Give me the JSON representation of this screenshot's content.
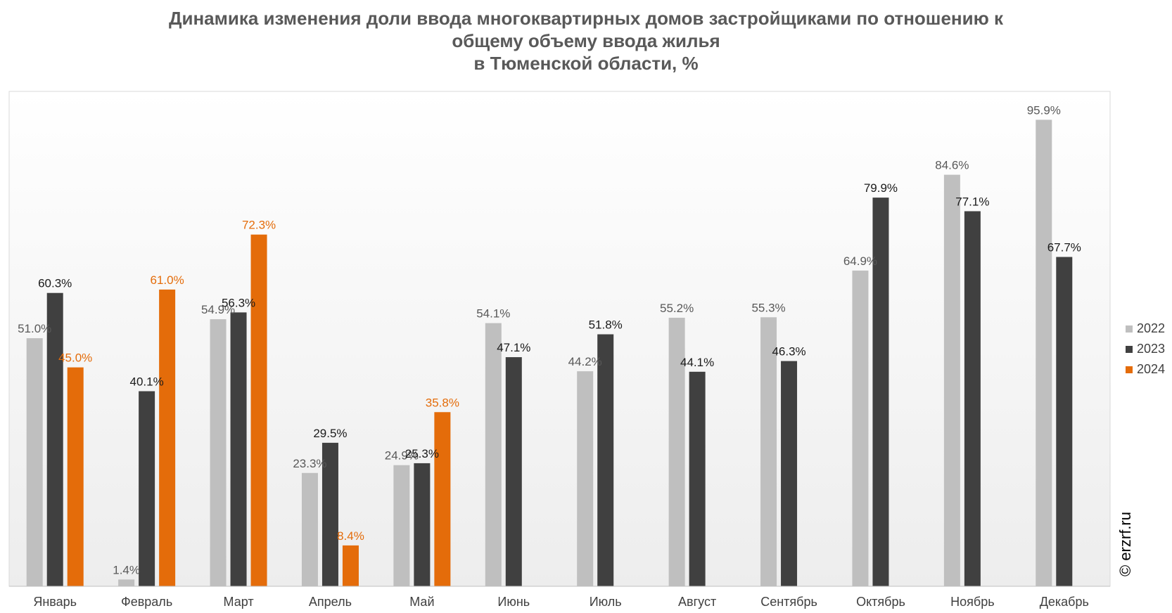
{
  "chart_data": {
    "type": "bar",
    "title_lines": [
      "Динамика изменения доли ввода многоквартирных домов застройщиками по отношению к",
      "общему объему ввода жилья",
      "в Тюменской области, %"
    ],
    "categories": [
      "Январь",
      "Февраль",
      "Март",
      "Апрель",
      "Май",
      "Июнь",
      "Июль",
      "Август",
      "Сентябрь",
      "Октябрь",
      "Ноябрь",
      "Декабрь"
    ],
    "series": [
      {
        "name": "2022",
        "color": "#bfbfbf",
        "label_color": "#595959",
        "values": [
          51.0,
          1.4,
          54.9,
          23.3,
          24.9,
          54.1,
          44.2,
          55.2,
          55.3,
          64.9,
          84.6,
          95.9
        ],
        "labels": [
          "51.0%",
          "1.4%",
          "54.9%",
          "23.3%",
          "24.9%",
          "54.1%",
          "44.2%",
          "55.2%",
          "55.3%",
          "64.9%",
          "84.6%",
          "95.9%"
        ]
      },
      {
        "name": "2023",
        "color": "#404040",
        "label_color": "#1a1a1a",
        "values": [
          60.3,
          40.1,
          56.3,
          29.5,
          25.3,
          47.1,
          51.8,
          44.1,
          46.3,
          79.9,
          77.1,
          67.7
        ],
        "labels": [
          "60.3%",
          "40.1%",
          "56.3%",
          "29.5%",
          "25.3%",
          "47.1%",
          "51.8%",
          "44.1%",
          "46.3%",
          "79.9%",
          "77.1%",
          "67.7%"
        ]
      },
      {
        "name": "2024",
        "color": "#e46c0a",
        "label_color": "#e46c0a",
        "values": [
          45.0,
          61.0,
          72.3,
          8.4,
          35.8,
          null,
          null,
          null,
          null,
          null,
          null,
          null
        ],
        "labels": [
          "45.0%",
          "61.0%",
          "72.3%",
          "8.4%",
          "35.8%",
          "",
          "",
          "",
          "",
          "",
          "",
          ""
        ]
      }
    ],
    "ylim": [
      0,
      100
    ],
    "grid": false,
    "legend_position": "right",
    "watermark": "© erzrf.ru"
  }
}
